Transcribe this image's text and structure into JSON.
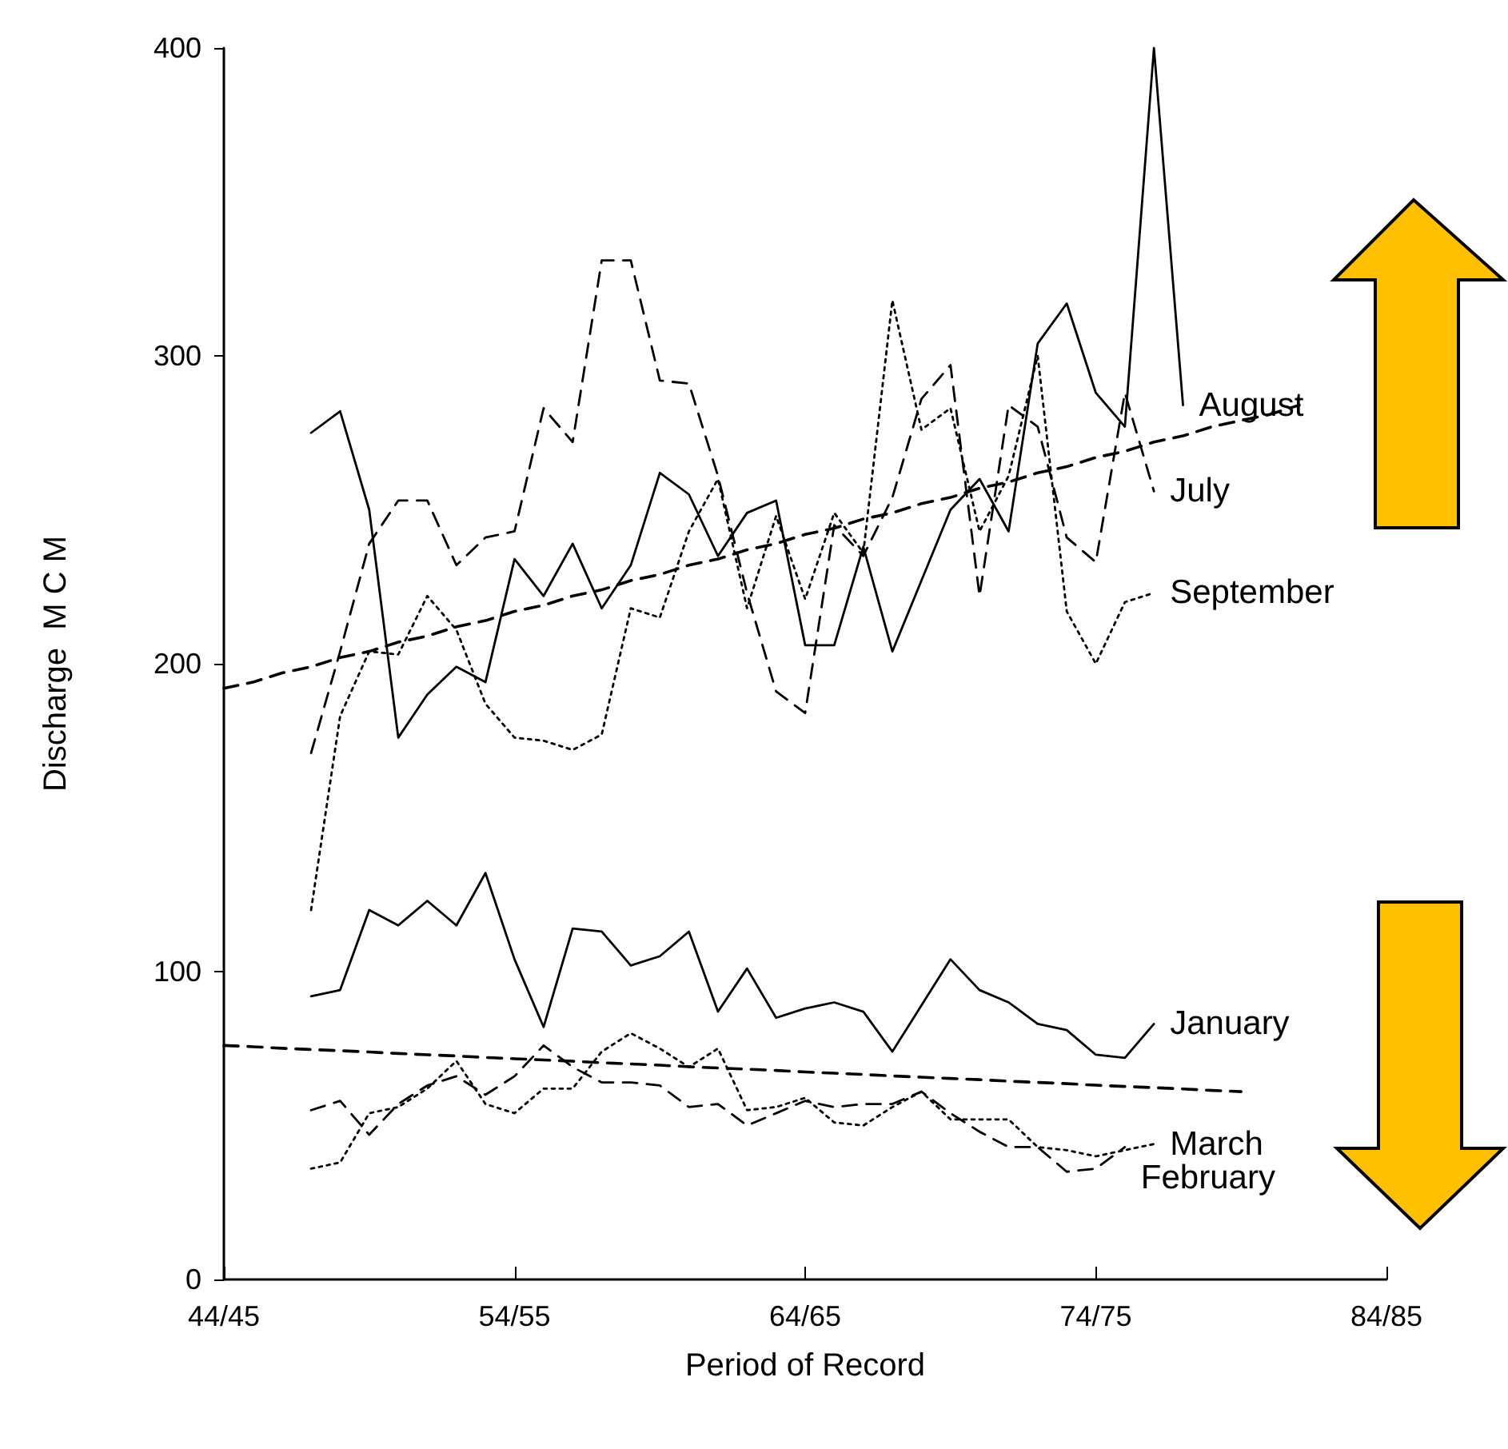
{
  "chart_data": {
    "type": "line",
    "xlabel": "Period of Record",
    "ylabel": "Discharge  M C M",
    "categories": [
      "44/45",
      null,
      null,
      null,
      null,
      null,
      null,
      null,
      null,
      null,
      "54/55",
      null,
      null,
      null,
      null,
      null,
      null,
      null,
      null,
      null,
      "64/65",
      null,
      null,
      null,
      null,
      null,
      null,
      null,
      null,
      null,
      "74/75",
      null,
      null,
      null,
      null,
      null,
      null,
      null,
      null,
      null,
      "84/85"
    ],
    "ylim": [
      0,
      400
    ],
    "yticks": [
      0,
      100,
      200,
      300,
      400
    ],
    "grid": false,
    "legend": false,
    "marker": "none",
    "series": [
      {
        "name": "August",
        "color": "#000000",
        "line_style": "solid",
        "values": [
          null,
          null,
          null,
          275,
          282,
          250,
          176,
          190,
          199,
          194,
          234,
          222,
          239,
          218,
          232,
          262,
          255,
          235,
          249,
          253,
          206,
          206,
          238,
          204,
          227,
          250,
          260,
          243,
          304,
          317,
          288,
          277,
          400,
          284,
          null,
          null,
          null,
          null,
          null,
          null,
          null
        ]
      },
      {
        "name": "July",
        "color": "#000000",
        "line_style": "dashed",
        "values": [
          null,
          null,
          null,
          171,
          204,
          239,
          253,
          253,
          232,
          241,
          243,
          283,
          272,
          331,
          331,
          292,
          291,
          261,
          223,
          191,
          184,
          245,
          235,
          254,
          286,
          297,
          222,
          284,
          277,
          241,
          233,
          288,
          256,
          null,
          null,
          null,
          null,
          null,
          null,
          null,
          null
        ]
      },
      {
        "name": "September",
        "color": "#000000",
        "line_style": "dotted",
        "values": [
          null,
          null,
          null,
          120,
          183,
          204,
          203,
          222,
          211,
          187,
          176,
          175,
          172,
          177,
          218,
          215,
          243,
          260,
          218,
          248,
          221,
          249,
          236,
          318,
          276,
          283,
          243,
          261,
          300,
          217,
          200,
          220,
          223,
          null,
          null,
          null,
          null,
          null,
          null,
          null,
          null
        ]
      },
      {
        "name": "January",
        "color": "#000000",
        "line_style": "solid",
        "values": [
          null,
          null,
          null,
          92,
          94,
          120,
          115,
          123,
          115,
          132,
          104,
          82,
          114,
          113,
          102,
          105,
          113,
          87,
          101,
          85,
          88,
          90,
          87,
          74,
          89,
          104,
          94,
          90,
          83,
          81,
          73,
          72,
          83,
          null,
          null,
          null,
          null,
          null,
          null,
          null,
          null
        ]
      },
      {
        "name": "February",
        "color": "#000000",
        "line_style": "dashed",
        "values": [
          null,
          null,
          null,
          55,
          58,
          47,
          57,
          63,
          66,
          60,
          66,
          76,
          69,
          64,
          64,
          63,
          56,
          57,
          50,
          54,
          58,
          56,
          57,
          57,
          61,
          54,
          48,
          43,
          43,
          35,
          36,
          43,
          null,
          null,
          null,
          null,
          null,
          null,
          null,
          null,
          null
        ]
      },
      {
        "name": "March",
        "color": "#000000",
        "line_style": "dotted",
        "values": [
          null,
          null,
          null,
          36,
          38,
          54,
          56,
          62,
          71,
          57,
          54,
          62,
          62,
          74,
          80,
          75,
          69,
          75,
          55,
          56,
          59,
          51,
          50,
          56,
          61,
          52,
          52,
          52,
          43,
          42,
          40,
          42,
          44,
          null,
          null,
          null,
          null,
          null,
          null,
          null,
          null
        ]
      },
      {
        "color": "#000000",
        "line_style": "dashed",
        "values": [
          192,
          194,
          197,
          199,
          202,
          204,
          207,
          209,
          212,
          214,
          217,
          219,
          222,
          224,
          227,
          229,
          232,
          234,
          237,
          239,
          242,
          244,
          247,
          249,
          252,
          254,
          257,
          259,
          262,
          264,
          267,
          269,
          272,
          274,
          277,
          279,
          281,
          284,
          null,
          null,
          null
        ]
      },
      {
        "color": "#000000",
        "line_style": "dashed",
        "values": [
          76,
          75.6,
          75.1,
          74.7,
          74.3,
          73.9,
          73.4,
          73,
          72.6,
          72.1,
          71.7,
          71.3,
          70.9,
          70.4,
          70,
          69.6,
          69.1,
          68.7,
          68.3,
          67.9,
          67.4,
          67,
          66.6,
          66.1,
          65.7,
          65.3,
          64.9,
          64.4,
          64,
          63.6,
          63.1,
          62.7,
          62.3,
          61.9,
          61.4,
          61,
          null,
          null,
          null,
          null,
          null
        ]
      }
    ]
  }
}
